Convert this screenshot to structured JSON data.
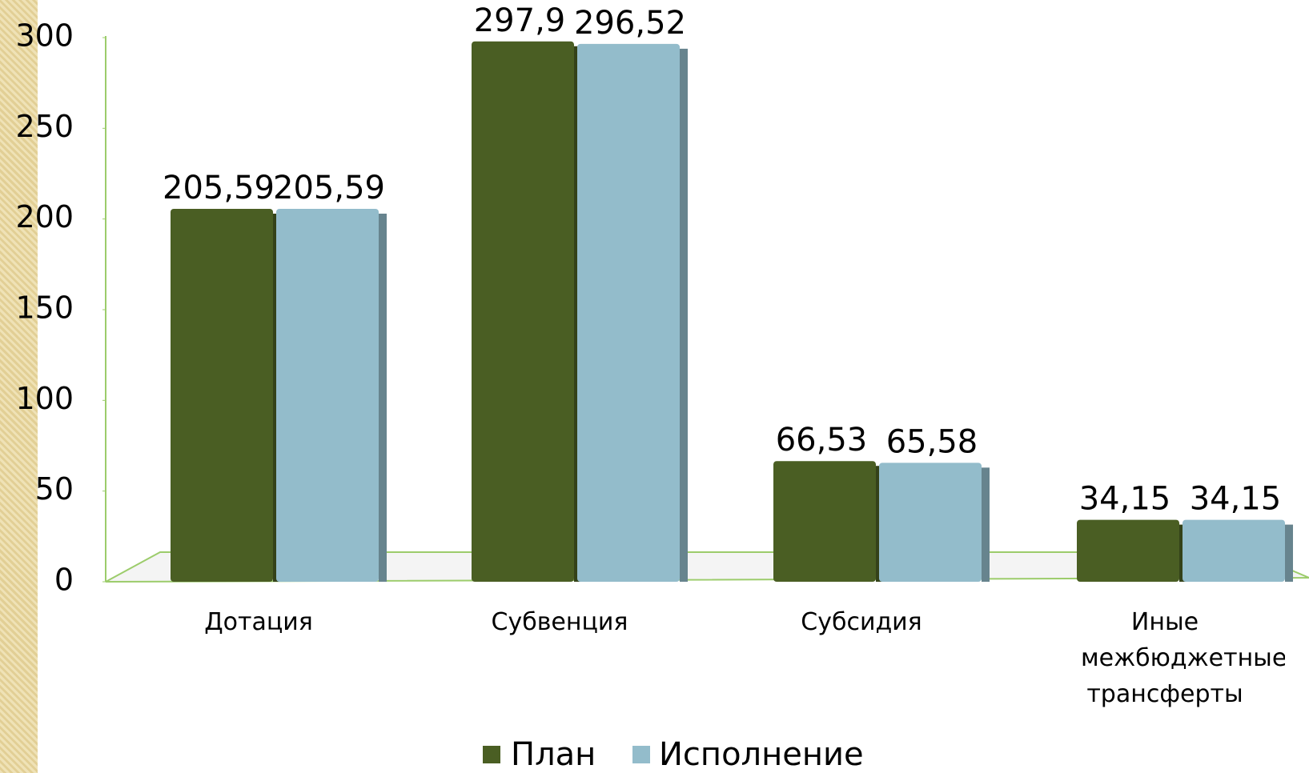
{
  "chart_data": {
    "type": "bar",
    "categories": [
      "Дотация",
      "Субвенция",
      "Субсидия",
      "Иные межбюджетные трансферты"
    ],
    "series": [
      {
        "name": "План",
        "color": "#4a5e23",
        "values": [
          205.59,
          297.9,
          66.53,
          34.15
        ],
        "value_labels": [
          "205,59",
          "297,9",
          "66,53",
          "34,15"
        ]
      },
      {
        "name": "Исполнение",
        "color": "#93bccb",
        "values": [
          205.59,
          296.52,
          65.58,
          34.15
        ],
        "value_labels": [
          "205,59",
          "296,52",
          "65,58",
          "34,15"
        ]
      }
    ],
    "ylim": [
      0,
      300
    ],
    "yticks": [
      0,
      50,
      100,
      150,
      200,
      250,
      300
    ],
    "legend": "bottom"
  }
}
